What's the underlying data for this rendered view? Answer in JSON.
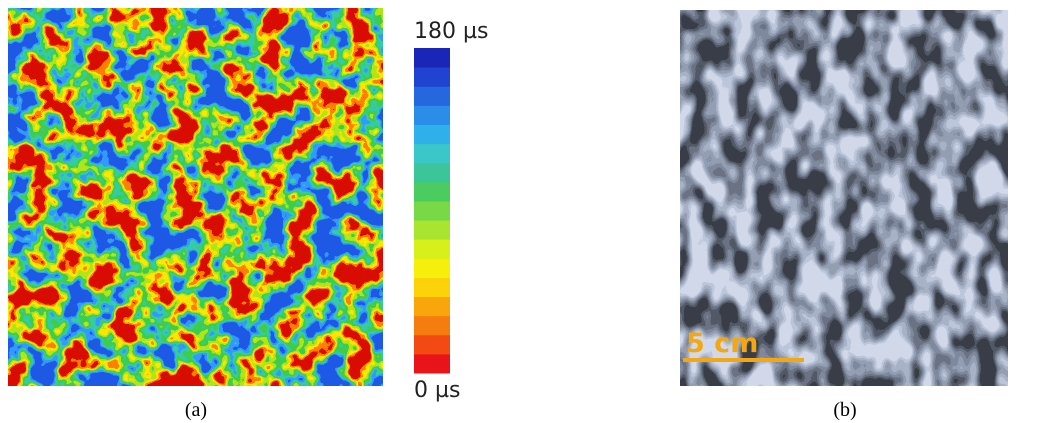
{
  "panel_a": {
    "colorbar": {
      "max_label": "180 µs",
      "min_label": "0 µs",
      "colors": [
        "#e8141a",
        "#f24a12",
        "#f57d10",
        "#f9a60c",
        "#fcd20a",
        "#f6ef0b",
        "#d7ef1a",
        "#a9e530",
        "#79d846",
        "#4ccc5e",
        "#3cc598",
        "#39c7c7",
        "#2fb0ea",
        "#2a8ee8",
        "#2467de",
        "#1f44d2",
        "#1a26b8"
      ]
    },
    "caption": "(a)"
  },
  "panel_b": {
    "scale_bar": "5 cm",
    "caption": "(b)"
  }
}
